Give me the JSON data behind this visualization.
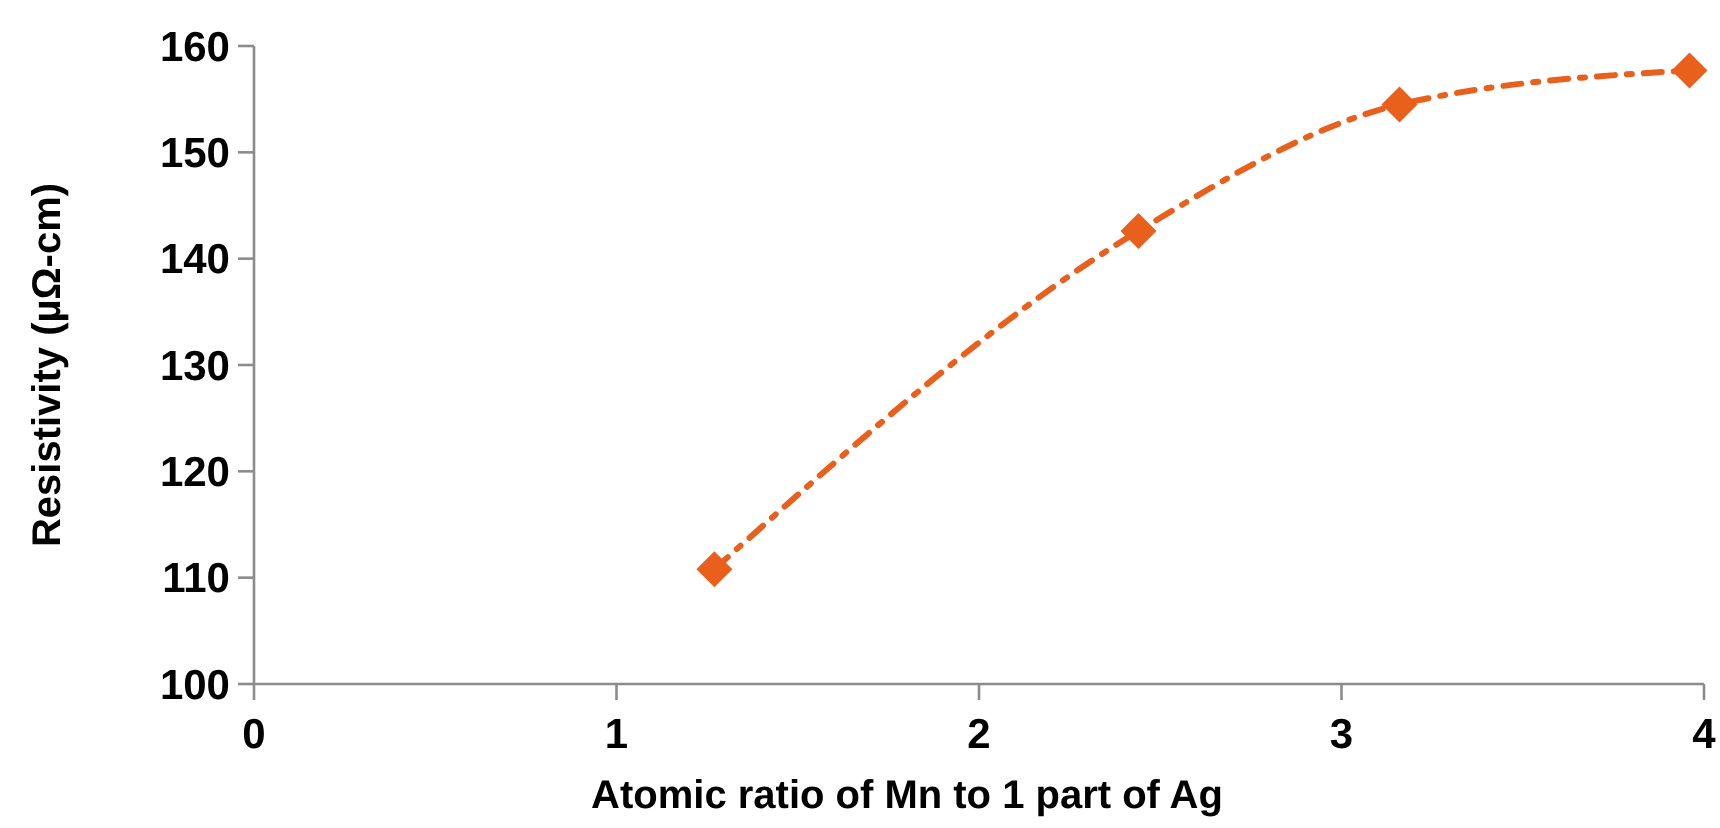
{
  "chart_data": {
    "type": "line",
    "xlabel": "Atomic ratio of Mn to 1 part of Ag",
    "ylabel": "Resistivity (µΩ-cm)",
    "x": [
      1.27,
      2.44,
      3.16,
      3.96
    ],
    "series": [
      {
        "color": "#e8601c",
        "values": [
          110.8,
          142.6,
          154.5,
          157.7
        ]
      }
    ],
    "xlim": [
      0,
      4
    ],
    "xticks": [
      0,
      1,
      2,
      3,
      4
    ],
    "ylim": [
      100,
      160
    ],
    "yticks": [
      100,
      110,
      120,
      130,
      140,
      150,
      160
    ],
    "grid": false,
    "marker": "diamond",
    "line_style": "dashed"
  }
}
